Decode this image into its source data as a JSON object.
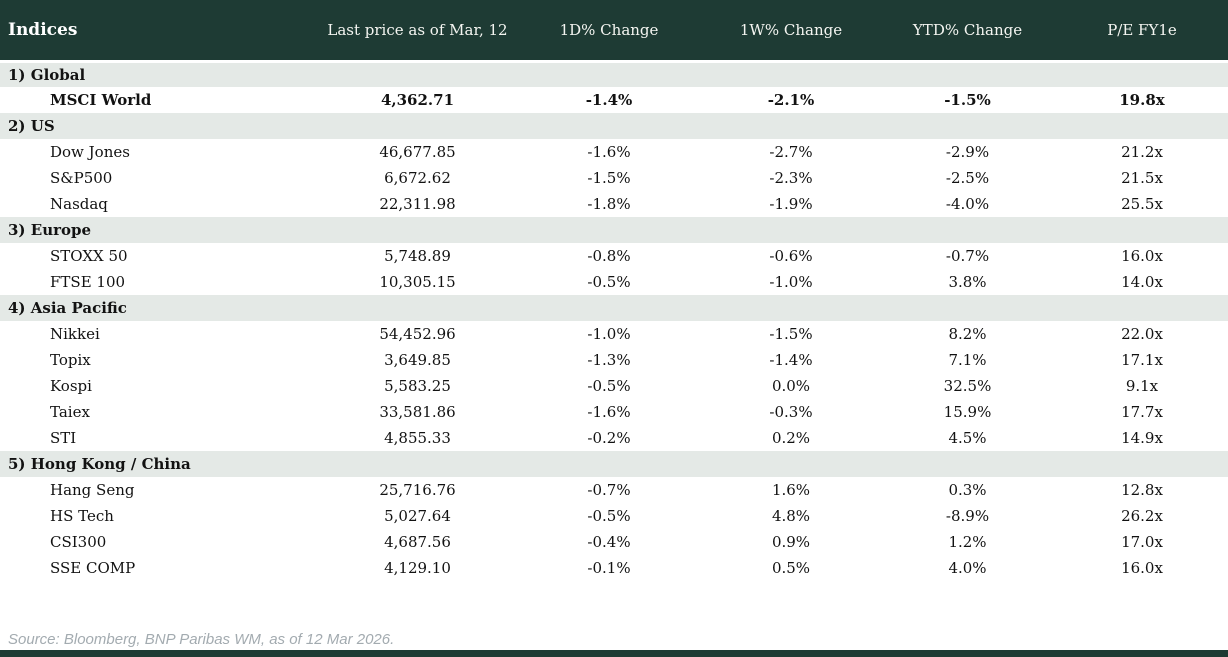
{
  "colors": {
    "header_bg": "#1e3b34",
    "section_row_bg": "#e4e9e6",
    "negative_value": "#c40a14",
    "positive_value": "#089e41",
    "header_text": "#f4f5f1",
    "source_text": "#a3abb0",
    "bottom_bar": "#1e3b34"
  },
  "footer": {
    "source": "Source: Bloomberg, BNP Paribas WM, as of 12 Mar 2026."
  },
  "chart_data": {
    "type": "table",
    "title": "Indices",
    "columns": [
      "Indices",
      "Last price as of Mar, 12",
      "1D% Change",
      "1W% Change",
      "YTD% Change",
      "P/E FY1e"
    ],
    "sections": [
      {
        "label": "1) Global",
        "rows": [
          {
            "name": "MSCI World",
            "bold": true,
            "price": "4,362.71",
            "chg_1d": {
              "text": "-1.4%",
              "color": "red"
            },
            "chg_1w": {
              "text": "-2.1%",
              "color": "red"
            },
            "chg_ytd": {
              "text": "-1.5%",
              "color": "red"
            },
            "pe": "19.8x"
          }
        ]
      },
      {
        "label": "2) US",
        "rows": [
          {
            "name": "Dow Jones",
            "bold": false,
            "price": "46,677.85",
            "chg_1d": {
              "text": "-1.6%",
              "color": "red"
            },
            "chg_1w": {
              "text": "-2.7%",
              "color": "red"
            },
            "chg_ytd": {
              "text": "-2.9%",
              "color": "red"
            },
            "pe": "21.2x"
          },
          {
            "name": "S&P500",
            "bold": false,
            "price": "6,672.62",
            "chg_1d": {
              "text": "-1.5%",
              "color": "red"
            },
            "chg_1w": {
              "text": "-2.3%",
              "color": "red"
            },
            "chg_ytd": {
              "text": "-2.5%",
              "color": "red"
            },
            "pe": "21.5x"
          },
          {
            "name": "Nasdaq",
            "bold": false,
            "price": "22,311.98",
            "chg_1d": {
              "text": "-1.8%",
              "color": "red"
            },
            "chg_1w": {
              "text": "-1.9%",
              "color": "red"
            },
            "chg_ytd": {
              "text": "-4.0%",
              "color": "red"
            },
            "pe": "25.5x"
          }
        ]
      },
      {
        "label": "3) Europe",
        "rows": [
          {
            "name": "STOXX 50",
            "bold": false,
            "price": "5,748.89",
            "chg_1d": {
              "text": "-0.8%",
              "color": "red"
            },
            "chg_1w": {
              "text": "-0.6%",
              "color": "red"
            },
            "chg_ytd": {
              "text": "-0.7%",
              "color": "red"
            },
            "pe": "16.0x"
          },
          {
            "name": "FTSE 100",
            "bold": false,
            "price": "10,305.15",
            "chg_1d": {
              "text": "-0.5%",
              "color": "red"
            },
            "chg_1w": {
              "text": "-1.0%",
              "color": "red"
            },
            "chg_ytd": {
              "text": "3.8%",
              "color": "green"
            },
            "pe": "14.0x"
          }
        ]
      },
      {
        "label": "4) Asia Pacific",
        "rows": [
          {
            "name": "Nikkei",
            "bold": false,
            "price": "54,452.96",
            "chg_1d": {
              "text": "-1.0%",
              "color": "red"
            },
            "chg_1w": {
              "text": "-1.5%",
              "color": "red"
            },
            "chg_ytd": {
              "text": "8.2%",
              "color": "green"
            },
            "pe": "22.0x"
          },
          {
            "name": "Topix",
            "bold": false,
            "price": "3,649.85",
            "chg_1d": {
              "text": "-1.3%",
              "color": "red"
            },
            "chg_1w": {
              "text": "-1.4%",
              "color": "red"
            },
            "chg_ytd": {
              "text": "7.1%",
              "color": "green"
            },
            "pe": "17.1x"
          },
          {
            "name": "Kospi",
            "bold": false,
            "price": "5,583.25",
            "chg_1d": {
              "text": "-0.5%",
              "color": "red"
            },
            "chg_1w": {
              "text": "0.0%",
              "color": "red"
            },
            "chg_ytd": {
              "text": "32.5%",
              "color": "green"
            },
            "pe": "9.1x"
          },
          {
            "name": "Taiex",
            "bold": false,
            "price": "33,581.86",
            "chg_1d": {
              "text": "-1.6%",
              "color": "red"
            },
            "chg_1w": {
              "text": "-0.3%",
              "color": "red"
            },
            "chg_ytd": {
              "text": "15.9%",
              "color": "green"
            },
            "pe": "17.7x"
          },
          {
            "name": "STI",
            "bold": false,
            "price": "4,855.33",
            "chg_1d": {
              "text": "-0.2%",
              "color": "red"
            },
            "chg_1w": {
              "text": "0.2%",
              "color": "green"
            },
            "chg_ytd": {
              "text": "4.5%",
              "color": "green"
            },
            "pe": "14.9x"
          }
        ]
      },
      {
        "label": "5) Hong Kong / China",
        "rows": [
          {
            "name": "Hang Seng",
            "bold": false,
            "price": "25,716.76",
            "chg_1d": {
              "text": "-0.7%",
              "color": "red"
            },
            "chg_1w": {
              "text": "1.6%",
              "color": "green"
            },
            "chg_ytd": {
              "text": "0.3%",
              "color": "green"
            },
            "pe": "12.8x"
          },
          {
            "name": "HS Tech",
            "bold": false,
            "price": "5,027.64",
            "chg_1d": {
              "text": "-0.5%",
              "color": "red"
            },
            "chg_1w": {
              "text": "4.8%",
              "color": "green"
            },
            "chg_ytd": {
              "text": "-8.9%",
              "color": "red"
            },
            "pe": "26.2x"
          },
          {
            "name": "CSI300",
            "bold": false,
            "price": "4,687.56",
            "chg_1d": {
              "text": "-0.4%",
              "color": "red"
            },
            "chg_1w": {
              "text": "0.9%",
              "color": "green"
            },
            "chg_ytd": {
              "text": "1.2%",
              "color": "green"
            },
            "pe": "17.0x"
          },
          {
            "name": "SSE COMP",
            "bold": false,
            "price": "4,129.10",
            "chg_1d": {
              "text": "-0.1%",
              "color": "red"
            },
            "chg_1w": {
              "text": "0.5%",
              "color": "green"
            },
            "chg_ytd": {
              "text": "4.0%",
              "color": "green"
            },
            "pe": "16.0x"
          }
        ]
      }
    ]
  }
}
